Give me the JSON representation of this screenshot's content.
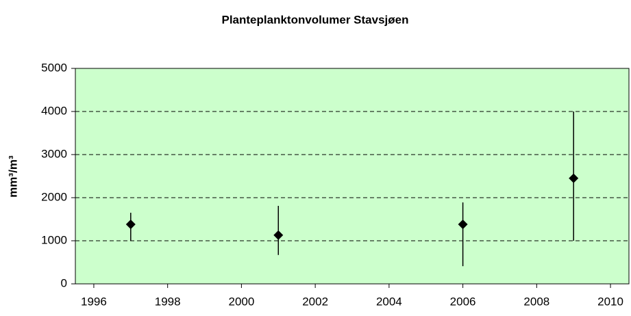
{
  "chart_data": {
    "type": "errorbar",
    "title": "Planteplanktonvolumer Stavsjøen",
    "y_label": "mm³/m³",
    "x": [
      1997,
      2001,
      2006,
      2009
    ],
    "values": [
      1380,
      1130,
      1380,
      2450
    ],
    "lower": [
      1000,
      670,
      410,
      1000
    ],
    "upper": [
      1650,
      1810,
      1890,
      4000
    ],
    "color": "#000000",
    "background": "#ccffcc",
    "xlim": [
      1995.5,
      2010.5
    ],
    "xticks": [
      1996,
      1998,
      2000,
      2002,
      2004,
      2006,
      2008,
      2010
    ],
    "ylim": [
      0,
      5000
    ],
    "yticks": [
      0,
      1000,
      2000,
      3000,
      4000,
      5000
    ],
    "grid": true
  }
}
